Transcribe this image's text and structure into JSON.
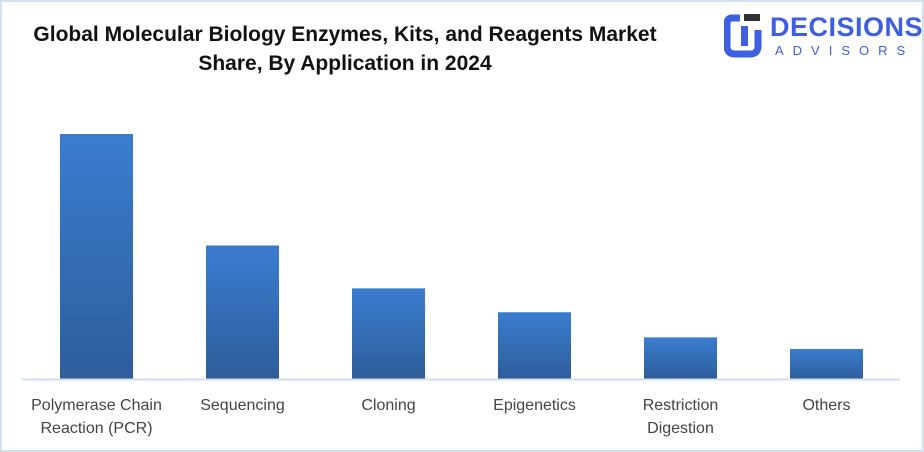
{
  "logo": {
    "line1": "DECISIONS",
    "line2": "ADVISORS",
    "color": "#3d5fe0"
  },
  "chart_data": {
    "type": "bar",
    "title": "Global Molecular Biology Enzymes, Kits, and Reagents Market Share, By Application in 2024",
    "title_lines": [
      "Global Molecular Biology Enzymes, Kits, and Reagents Market",
      "Share, By Application in 2024"
    ],
    "categories": [
      "Polymerase Chain Reaction (PCR)",
      "Sequencing",
      "Cloning",
      "Epigenetics",
      "Restriction Digestion",
      "Others"
    ],
    "category_lines": [
      [
        "Polymerase Chain",
        "Reaction (PCR)"
      ],
      [
        "Sequencing"
      ],
      [
        "Cloning"
      ],
      [
        "Epigenetics"
      ],
      [
        "Restriction",
        "Digestion"
      ],
      [
        "Others"
      ]
    ],
    "values": [
      40,
      21.8,
      14.8,
      10.9,
      6.8,
      4.9
    ],
    "ylim": [
      0,
      40
    ],
    "xlabel": "",
    "ylabel": "",
    "grid": false,
    "legend": "none",
    "bar_color_top": "#3b7dd0",
    "bar_color_bottom": "#2d5d9a",
    "axis_color": "#d0dff0"
  }
}
